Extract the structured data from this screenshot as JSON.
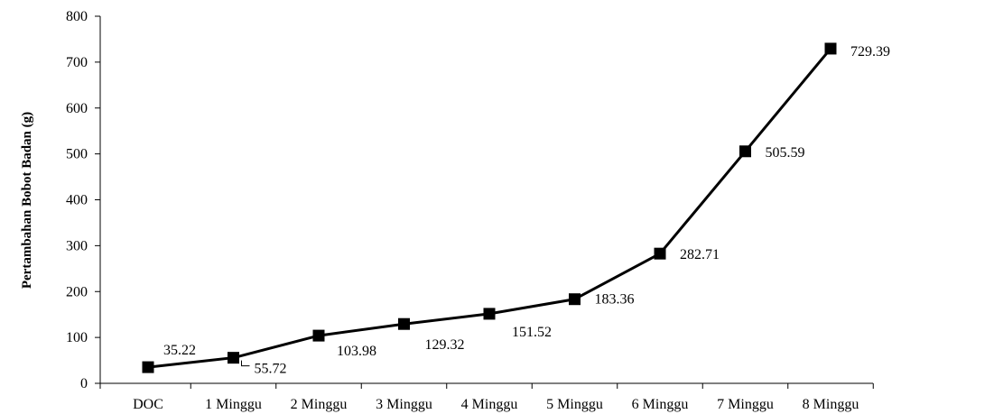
{
  "chart_data": {
    "type": "line",
    "title": "",
    "xlabel": "",
    "ylabel": "Pertambahan Bobot Badan (g)",
    "ylim": [
      0,
      800
    ],
    "yticks": [
      0,
      100,
      200,
      300,
      400,
      500,
      600,
      700,
      800
    ],
    "categories": [
      "DOC",
      "1 Minggu",
      "2 Minggu",
      "3 Minggu",
      "4 Minggu",
      "5 Minggu",
      "6 Minggu",
      "7 Minggu",
      "8 Minggu"
    ],
    "series": [
      {
        "values": [
          35.22,
          55.72,
          103.98,
          129.32,
          151.52,
          183.36,
          282.71,
          505.59,
          729.39
        ],
        "data_labels": [
          "35.22",
          "55.72",
          "103.98",
          "129.32",
          "151.52",
          "183.36",
          "282.71",
          "505.59",
          "729.39"
        ],
        "color": "#000000",
        "marker": "square"
      }
    ],
    "grid": false,
    "legend": "none"
  }
}
